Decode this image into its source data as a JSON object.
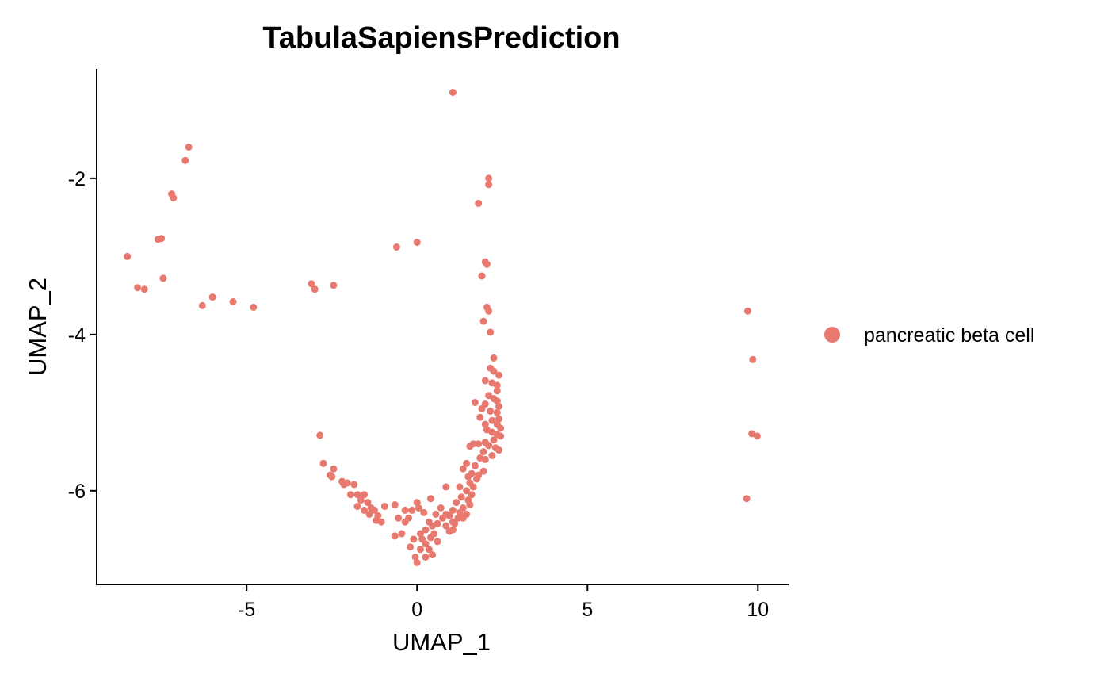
{
  "chart_data": {
    "type": "scatter",
    "title": "TabulaSapiensPrediction",
    "xlabel": "UMAP_1",
    "ylabel": "UMAP_2",
    "xlim": [
      -9.4,
      10.9
    ],
    "ylim": [
      -7.2,
      -0.6
    ],
    "xticks": [
      -5,
      0,
      5,
      10
    ],
    "xtick_labels": [
      "-5",
      "0",
      "5",
      "10"
    ],
    "yticks": [
      -2,
      -4,
      -6
    ],
    "ytick_labels": [
      "-2",
      "-4",
      "-6"
    ],
    "grid": false,
    "legend_position": "right",
    "series": [
      {
        "name": "pancreatic beta cell",
        "color": "#E8796F",
        "points": [
          [
            1.05,
            -0.9
          ],
          [
            -6.7,
            -1.6
          ],
          [
            -6.8,
            -1.77
          ],
          [
            -7.2,
            -2.2
          ],
          [
            -7.15,
            -2.25
          ],
          [
            2.1,
            -2.0
          ],
          [
            2.1,
            -2.08
          ],
          [
            1.8,
            -2.32
          ],
          [
            -7.6,
            -2.78
          ],
          [
            -7.5,
            -2.77
          ],
          [
            -8.5,
            -3.0
          ],
          [
            -8.2,
            -3.4
          ],
          [
            -8.0,
            -3.42
          ],
          [
            -7.45,
            -3.28
          ],
          [
            -0.6,
            -2.88
          ],
          [
            0.0,
            -2.82
          ],
          [
            2.0,
            -3.07
          ],
          [
            2.05,
            -3.1
          ],
          [
            1.9,
            -3.25
          ],
          [
            -3.1,
            -3.35
          ],
          [
            -3.0,
            -3.42
          ],
          [
            -2.45,
            -3.37
          ],
          [
            -6.0,
            -3.52
          ],
          [
            -6.3,
            -3.63
          ],
          [
            -5.4,
            -3.58
          ],
          [
            -4.8,
            -3.65
          ],
          [
            2.05,
            -3.65
          ],
          [
            2.1,
            -3.7
          ],
          [
            1.95,
            -3.83
          ],
          [
            2.15,
            -3.97
          ],
          [
            9.7,
            -3.7
          ],
          [
            9.85,
            -4.32
          ],
          [
            2.25,
            -4.3
          ],
          [
            2.15,
            -4.43
          ],
          [
            2.25,
            -4.47
          ],
          [
            2.4,
            -4.52
          ],
          [
            2.0,
            -4.59
          ],
          [
            2.2,
            -4.62
          ],
          [
            2.35,
            -4.65
          ],
          [
            2.35,
            -4.72
          ],
          [
            2.1,
            -4.78
          ],
          [
            2.25,
            -4.82
          ],
          [
            2.35,
            -4.85
          ],
          [
            1.7,
            -4.87
          ],
          [
            2.0,
            -4.89
          ],
          [
            2.4,
            -4.92
          ],
          [
            1.9,
            -4.95
          ],
          [
            2.15,
            -4.98
          ],
          [
            2.35,
            -5.0
          ],
          [
            1.85,
            -5.06
          ],
          [
            2.4,
            -5.08
          ],
          [
            2.2,
            -5.1
          ],
          [
            2.0,
            -5.15
          ],
          [
            2.35,
            -5.15
          ],
          [
            2.45,
            -5.2
          ],
          [
            2.05,
            -5.22
          ],
          [
            2.2,
            -5.25
          ],
          [
            2.35,
            -5.28
          ],
          [
            2.45,
            -5.3
          ],
          [
            9.82,
            -5.27
          ],
          [
            9.98,
            -5.3
          ],
          [
            -2.85,
            -5.29
          ],
          [
            2.25,
            -5.35
          ],
          [
            2.0,
            -5.38
          ],
          [
            1.8,
            -5.4
          ],
          [
            1.65,
            -5.4
          ],
          [
            2.1,
            -5.42
          ],
          [
            1.55,
            -5.43
          ],
          [
            2.3,
            -5.45
          ],
          [
            2.4,
            -5.48
          ],
          [
            1.95,
            -5.5
          ],
          [
            2.2,
            -5.55
          ],
          [
            1.85,
            -5.58
          ],
          [
            2.0,
            -5.6
          ],
          [
            1.45,
            -5.65
          ],
          [
            1.7,
            -5.68
          ],
          [
            1.35,
            -5.72
          ],
          [
            1.95,
            -5.75
          ],
          [
            1.6,
            -5.78
          ],
          [
            1.8,
            -5.8
          ],
          [
            1.5,
            -5.82
          ],
          [
            1.75,
            -5.85
          ],
          [
            1.55,
            -5.9
          ],
          [
            1.65,
            -5.95
          ],
          [
            1.25,
            -5.95
          ],
          [
            0.85,
            -5.95
          ],
          [
            1.45,
            -6.0
          ],
          [
            1.6,
            -6.05
          ],
          [
            1.3,
            -6.08
          ],
          [
            1.5,
            -6.12
          ],
          [
            1.15,
            -6.15
          ],
          [
            1.55,
            -6.18
          ],
          [
            1.35,
            -6.22
          ],
          [
            1.05,
            -6.25
          ],
          [
            1.25,
            -6.28
          ],
          [
            1.45,
            -6.3
          ],
          [
            0.95,
            -6.32
          ],
          [
            1.2,
            -6.35
          ],
          [
            1.35,
            -6.35
          ],
          [
            1.05,
            -6.4
          ],
          [
            0.85,
            -6.45
          ],
          [
            1.1,
            -6.42
          ],
          [
            0.95,
            -6.52
          ],
          [
            1.05,
            -6.5
          ],
          [
            -2.75,
            -5.65
          ],
          [
            -2.55,
            -5.8
          ],
          [
            -2.45,
            -5.72
          ],
          [
            -2.5,
            -5.82
          ],
          [
            -2.2,
            -5.88
          ],
          [
            -2.05,
            -5.9
          ],
          [
            -2.15,
            -5.92
          ],
          [
            -1.85,
            -5.92
          ],
          [
            -1.95,
            -6.05
          ],
          [
            -1.75,
            -6.05
          ],
          [
            -1.55,
            -6.05
          ],
          [
            -1.65,
            -6.12
          ],
          [
            -1.45,
            -6.15
          ],
          [
            -1.75,
            -6.2
          ],
          [
            -1.55,
            -6.25
          ],
          [
            -1.35,
            -6.22
          ],
          [
            -1.25,
            -6.25
          ],
          [
            -1.4,
            -6.3
          ],
          [
            -1.15,
            -6.32
          ],
          [
            -1.2,
            -6.38
          ],
          [
            -1.05,
            -6.4
          ],
          [
            -0.95,
            -6.2
          ],
          [
            -0.65,
            -6.18
          ],
          [
            -0.35,
            -6.25
          ],
          [
            -0.25,
            -6.35
          ],
          [
            -0.55,
            -6.35
          ],
          [
            -0.35,
            -6.4
          ],
          [
            -0.15,
            -6.25
          ],
          [
            0.0,
            -6.15
          ],
          [
            0.05,
            -6.22
          ],
          [
            0.2,
            -6.28
          ],
          [
            0.4,
            -6.1
          ],
          [
            0.55,
            -6.3
          ],
          [
            0.35,
            -6.4
          ],
          [
            0.45,
            -6.45
          ],
          [
            0.6,
            -6.42
          ],
          [
            0.25,
            -6.5
          ],
          [
            0.5,
            -6.55
          ],
          [
            0.75,
            -6.35
          ],
          [
            0.85,
            -6.3
          ],
          [
            0.7,
            -6.22
          ],
          [
            -0.45,
            -6.55
          ],
          [
            -0.65,
            -6.58
          ],
          [
            0.1,
            -6.55
          ],
          [
            -0.1,
            -6.62
          ],
          [
            0.15,
            -6.62
          ],
          [
            0.4,
            -6.6
          ],
          [
            0.25,
            -6.68
          ],
          [
            0.6,
            -6.65
          ],
          [
            -0.2,
            -6.72
          ],
          [
            0.1,
            -6.75
          ],
          [
            0.35,
            -6.75
          ],
          [
            0.45,
            -6.82
          ],
          [
            -0.05,
            -6.85
          ],
          [
            0.25,
            -6.85
          ],
          [
            0.0,
            -6.92
          ],
          [
            9.67,
            -6.1
          ]
        ]
      }
    ]
  }
}
